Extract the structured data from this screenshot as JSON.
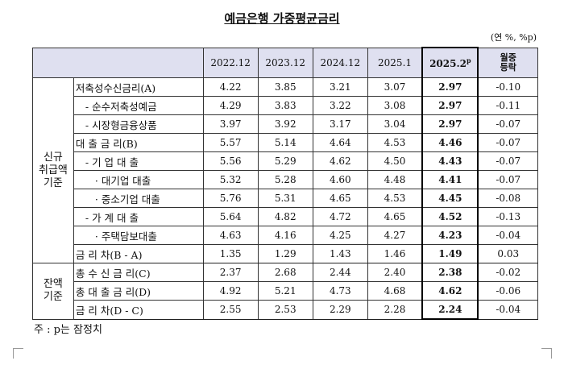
{
  "title": "예금은행 가중평균금리",
  "unit": "(연 %, %p)",
  "header": {
    "columns": [
      "2022.12",
      "2023.12",
      "2024.12",
      "2025.1",
      "2025.2",
      [
        "월중",
        "등락"
      ]
    ],
    "provisional_mark": "p"
  },
  "groups": [
    {
      "label": [
        "신규",
        "취급액",
        "기준"
      ],
      "rows": [
        {
          "label": "저축성수신금리(A)",
          "values": [
            "4.22",
            "3.85",
            "3.21",
            "3.07",
            "2.97",
            "-0.10"
          ]
        },
        {
          "label": "- 순수저축성예금",
          "values": [
            "4.29",
            "3.83",
            "3.22",
            "3.08",
            "2.97",
            "-0.11"
          ]
        },
        {
          "label": "- 시장형금융상품",
          "values": [
            "3.97",
            "3.92",
            "3.17",
            "3.04",
            "2.97",
            "-0.07"
          ]
        },
        {
          "label": "대 출 금 리(B)",
          "values": [
            "5.57",
            "5.14",
            "4.64",
            "4.53",
            "4.46",
            "-0.07"
          ]
        },
        {
          "label": "- 기 업 대 출",
          "values": [
            "5.56",
            "5.29",
            "4.62",
            "4.50",
            "4.43",
            "-0.07"
          ]
        },
        {
          "label": "· 대기업 대출",
          "values": [
            "5.32",
            "5.28",
            "4.60",
            "4.48",
            "4.41",
            "-0.07"
          ]
        },
        {
          "label": "· 중소기업 대출",
          "values": [
            "5.76",
            "5.31",
            "4.65",
            "4.53",
            "4.45",
            "-0.08"
          ]
        },
        {
          "label": "- 가 계 대 출",
          "values": [
            "5.64",
            "4.82",
            "4.72",
            "4.65",
            "4.52",
            "-0.13"
          ]
        },
        {
          "label": "· 주택담보대출",
          "values": [
            "4.63",
            "4.16",
            "4.25",
            "4.27",
            "4.23",
            "-0.04"
          ]
        },
        {
          "label": "금 리 차(B - A)",
          "values": [
            "1.35",
            "1.29",
            "1.43",
            "1.46",
            "1.49",
            "0.03"
          ]
        }
      ]
    },
    {
      "label": [
        "잔액",
        "기준"
      ],
      "rows": [
        {
          "label": "총 수 신 금 리(C)",
          "values": [
            "2.37",
            "2.68",
            "2.44",
            "2.40",
            "2.38",
            "-0.02"
          ]
        },
        {
          "label": "총 대 출 금 리(D)",
          "values": [
            "4.92",
            "5.21",
            "4.73",
            "4.68",
            "4.62",
            "-0.06"
          ]
        },
        {
          "label": "금 리 차(D - C)",
          "values": [
            "2.55",
            "2.53",
            "2.29",
            "2.28",
            "2.24",
            "-0.04"
          ]
        }
      ]
    }
  ],
  "note": "주 : p는 잠정치"
}
